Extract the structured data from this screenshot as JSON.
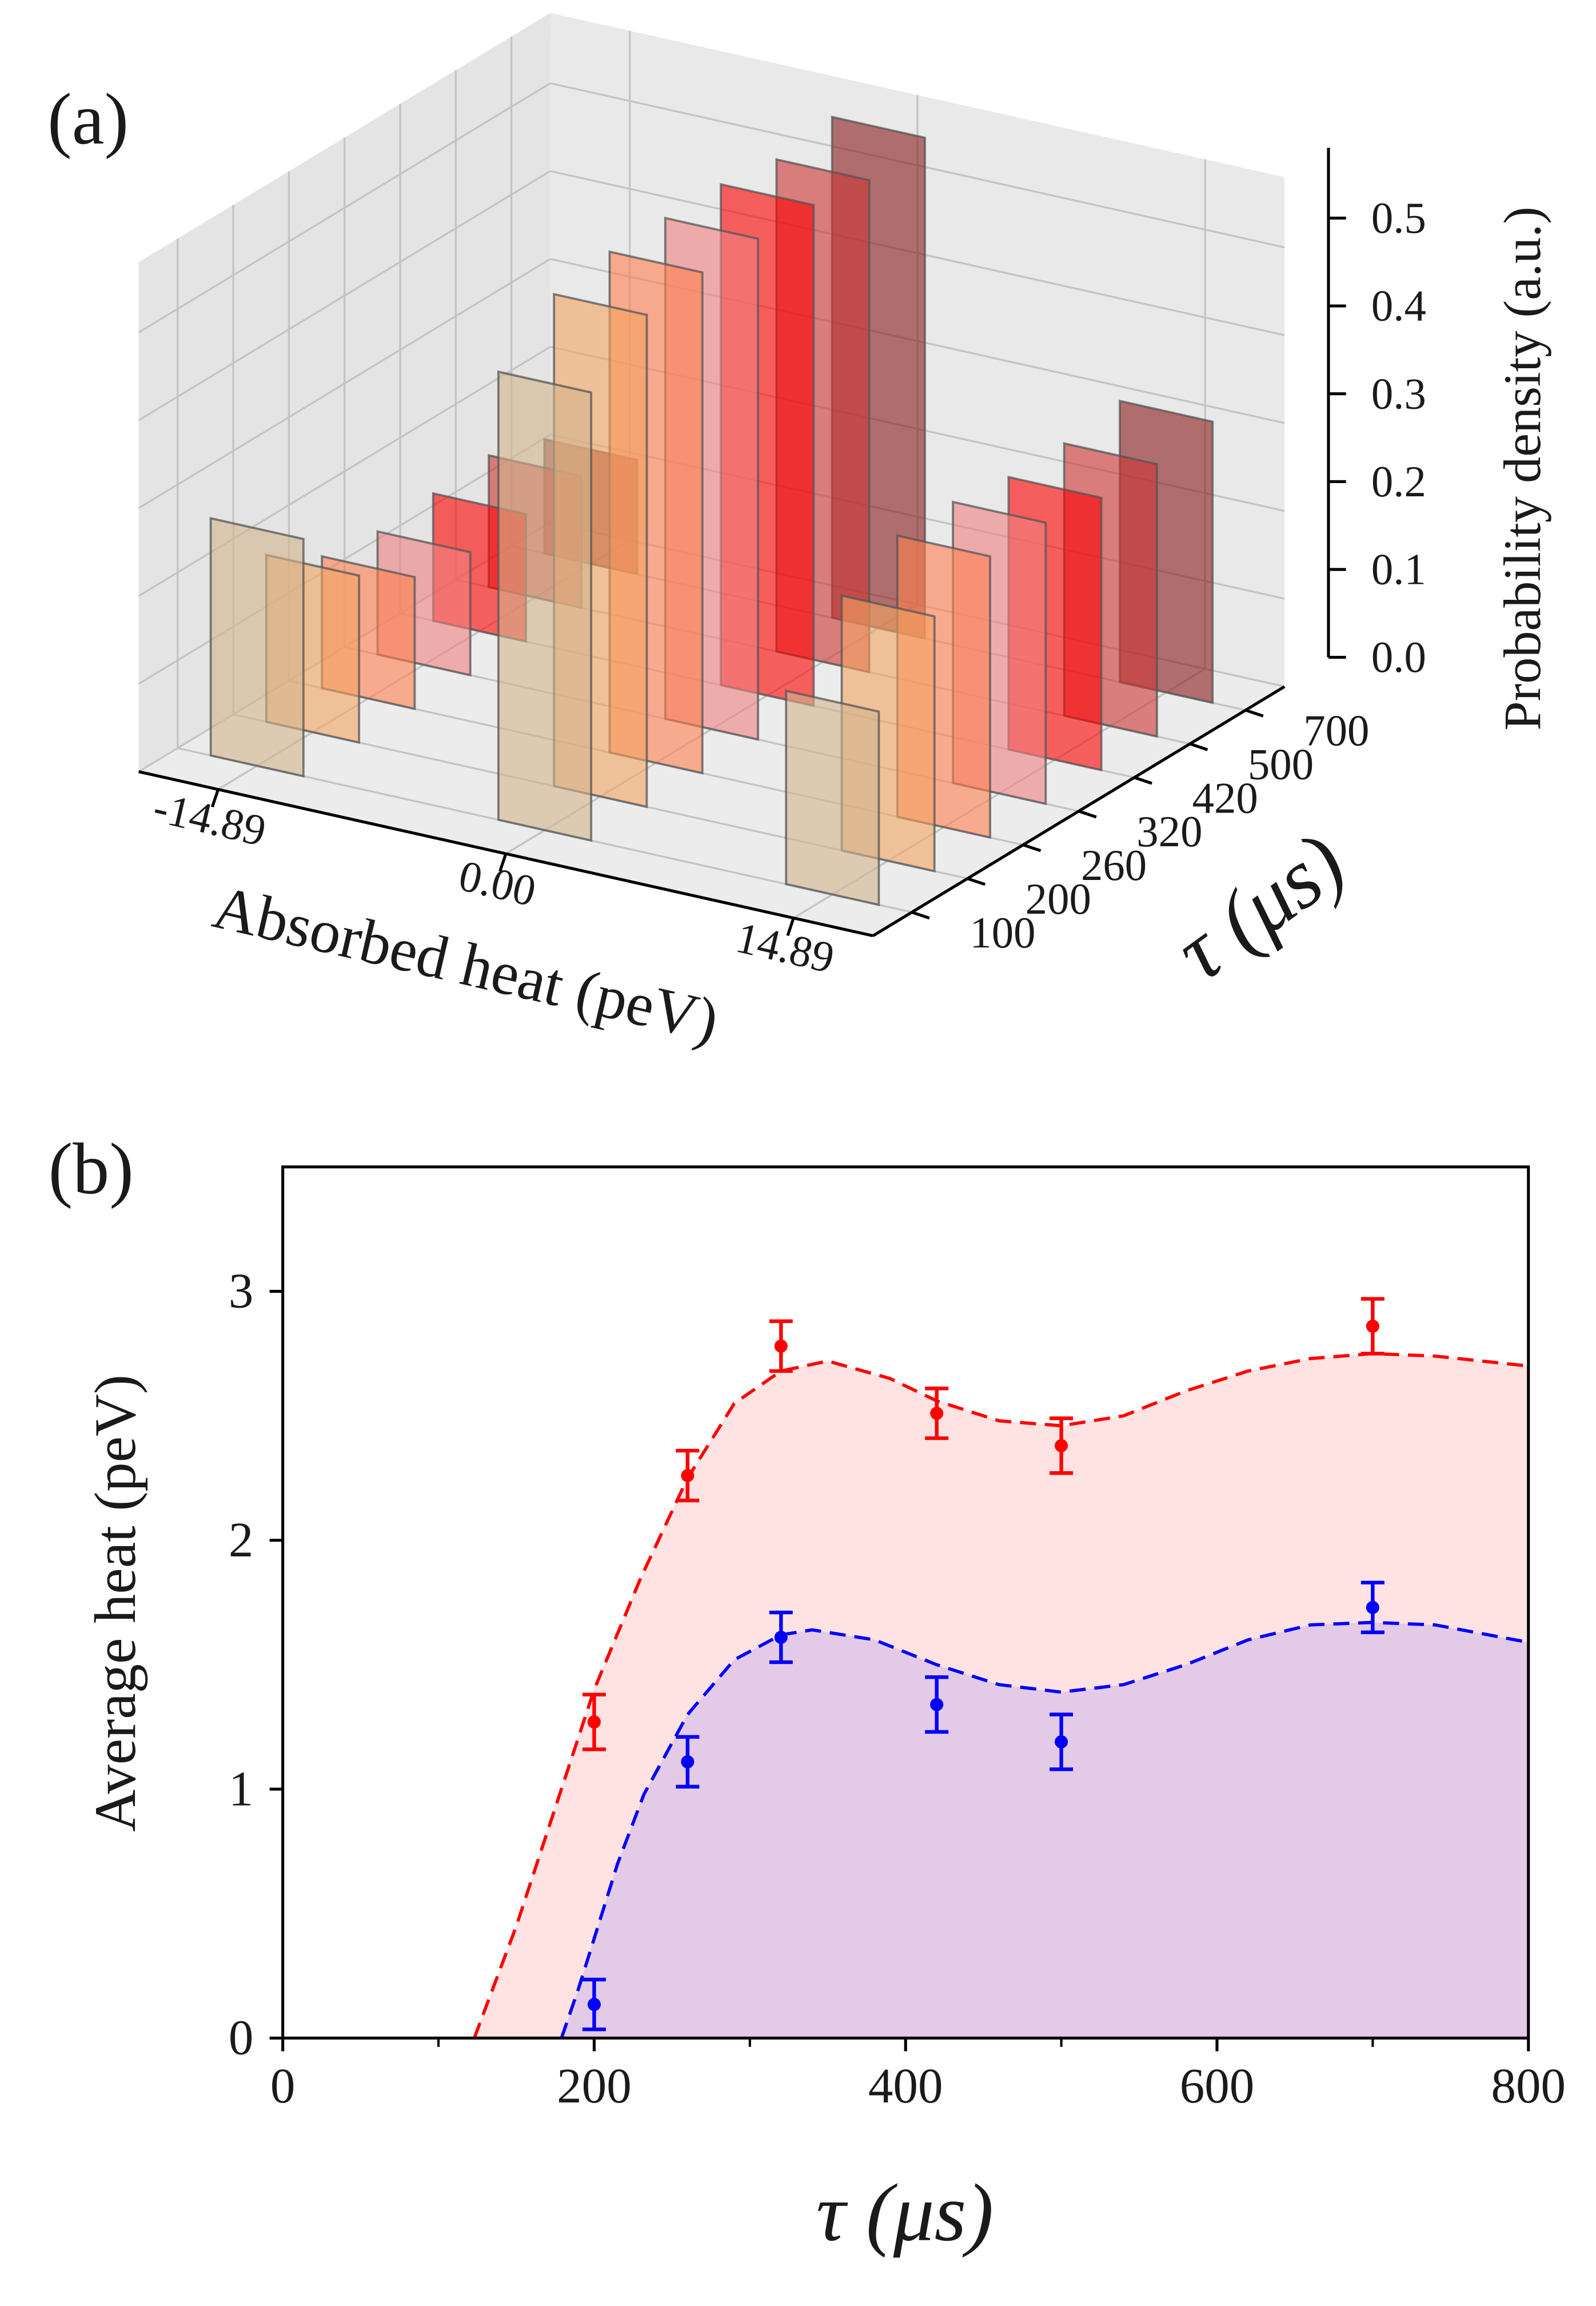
{
  "chart_data": [
    {
      "type": "bar3d",
      "panel_label": "(a)",
      "x_label": "Absorbed heat  (peV)",
      "y_label": "τ (μs)",
      "z_label": "Probability density (a.u.)",
      "x": [
        -14.89,
        0,
        14.89
      ],
      "xlim": [
        -19,
        19
      ],
      "xticks": [
        -14.89,
        {
          "value": 0,
          "label": "0.00"
        },
        14.89
      ],
      "zlim": [
        0,
        0.58
      ],
      "zticks": [
        {
          "value": 0,
          "label": "0.0"
        },
        0.1,
        0.2,
        0.3,
        0.4,
        0.5
      ],
      "grid": true,
      "series": [
        {
          "name": "100",
          "color": "#d2b48c",
          "values": [
            0.27,
            0.51,
            0.22
          ]
        },
        {
          "name": "200",
          "color": "#f4a460",
          "values": [
            0.19,
            0.56,
            0.29
          ]
        },
        {
          "name": "260",
          "color": "#ff7f50",
          "values": [
            0.15,
            0.57,
            0.32
          ]
        },
        {
          "name": "320",
          "color": "#f08080",
          "values": [
            0.14,
            0.57,
            0.32
          ]
        },
        {
          "name": "420",
          "color": "#ff0000",
          "values": [
            0.145,
            0.57,
            0.31
          ]
        },
        {
          "name": "500",
          "color": "#cd3333",
          "values": [
            0.15,
            0.56,
            0.31
          ]
        },
        {
          "name": "700",
          "color": "#8b1a1a",
          "values": [
            0.13,
            0.57,
            0.32
          ]
        }
      ]
    },
    {
      "type": "errorbar",
      "panel_label": "(b)",
      "x_label": "τ (μs)",
      "y_label": "Average heat (peV)",
      "xlim": [
        0,
        800
      ],
      "ylim": [
        0,
        3.5
      ],
      "xticks": [
        0,
        200,
        400,
        600,
        800
      ],
      "xminorticks": [
        100,
        300,
        500,
        700
      ],
      "yticks": [
        0,
        1,
        2,
        3
      ],
      "series": [
        {
          "color": "#ff0000",
          "x": [
            200,
            260,
            320,
            420,
            500,
            700
          ],
          "values": [
            1.27,
            2.26,
            2.78,
            2.51,
            2.38,
            2.86
          ],
          "errors": [
            0.11,
            0.1,
            0.1,
            0.1,
            0.11,
            0.11
          ],
          "fit_x": [
            123,
            150,
            200,
            230,
            260,
            290,
            320,
            350,
            390,
            420,
            460,
            500,
            540,
            580,
            620,
            660,
            700,
            740,
            800
          ],
          "fit_values": [
            0,
            0.45,
            1.4,
            1.85,
            2.25,
            2.55,
            2.68,
            2.72,
            2.65,
            2.56,
            2.48,
            2.46,
            2.5,
            2.6,
            2.68,
            2.73,
            2.75,
            2.74,
            2.7
          ]
        },
        {
          "color": "#0000ff",
          "x": [
            200,
            260,
            320,
            420,
            500,
            700
          ],
          "values": [
            0.135,
            1.11,
            1.61,
            1.34,
            1.19,
            1.73
          ],
          "errors": [
            0.1,
            0.1,
            0.1,
            0.11,
            0.11,
            0.1
          ],
          "fit_x": [
            179,
            190,
            200,
            215,
            232,
            260,
            290,
            320,
            340,
            380,
            420,
            460,
            500,
            540,
            580,
            620,
            660,
            700,
            740,
            800
          ],
          "fit_values": [
            0,
            0.2,
            0.4,
            0.7,
            0.98,
            1.3,
            1.52,
            1.62,
            1.64,
            1.6,
            1.5,
            1.42,
            1.39,
            1.42,
            1.5,
            1.6,
            1.66,
            1.67,
            1.66,
            1.59
          ]
        }
      ]
    }
  ]
}
